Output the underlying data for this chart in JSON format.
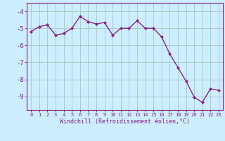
{
  "x": [
    0,
    1,
    2,
    3,
    4,
    5,
    6,
    7,
    8,
    9,
    10,
    11,
    12,
    13,
    14,
    15,
    16,
    17,
    18,
    19,
    20,
    21,
    22,
    23
  ],
  "y": [
    -5.2,
    -4.9,
    -4.8,
    -5.4,
    -5.3,
    -5.0,
    -4.3,
    -4.6,
    -4.75,
    -4.65,
    -5.4,
    -5.0,
    -5.0,
    -4.55,
    -5.0,
    -5.0,
    -5.5,
    -6.5,
    -7.3,
    -8.1,
    -9.05,
    -9.35,
    -8.55,
    -8.65
  ],
  "line_color": "#882288",
  "marker": "D",
  "marker_size": 2.0,
  "bg_color": "#cceeff",
  "grid_color": "#aacccc",
  "ylim": [
    -9.8,
    -3.5
  ],
  "xlim": [
    -0.5,
    23.5
  ],
  "yticks": [
    -9,
    -8,
    -7,
    -6,
    -5,
    -4
  ],
  "ytick_labels": [
    "-9",
    "-8",
    "-7",
    "-6",
    "-5",
    "-4"
  ],
  "xtick_labels": [
    "0",
    "1",
    "2",
    "3",
    "4",
    "5",
    "6",
    "7",
    "8",
    "9",
    "10",
    "11",
    "12",
    "13",
    "14",
    "15",
    "16",
    "17",
    "18",
    "19",
    "20",
    "21",
    "22",
    "23"
  ],
  "xlabel": "Windchill (Refroidissement éolien,°C)",
  "xlabel_color": "#882288",
  "tick_color": "#882288",
  "axis_color": "#882288",
  "linewidth": 1.0,
  "xtick_fontsize": 5.0,
  "ytick_fontsize": 6.5,
  "xlabel_fontsize": 6.0
}
